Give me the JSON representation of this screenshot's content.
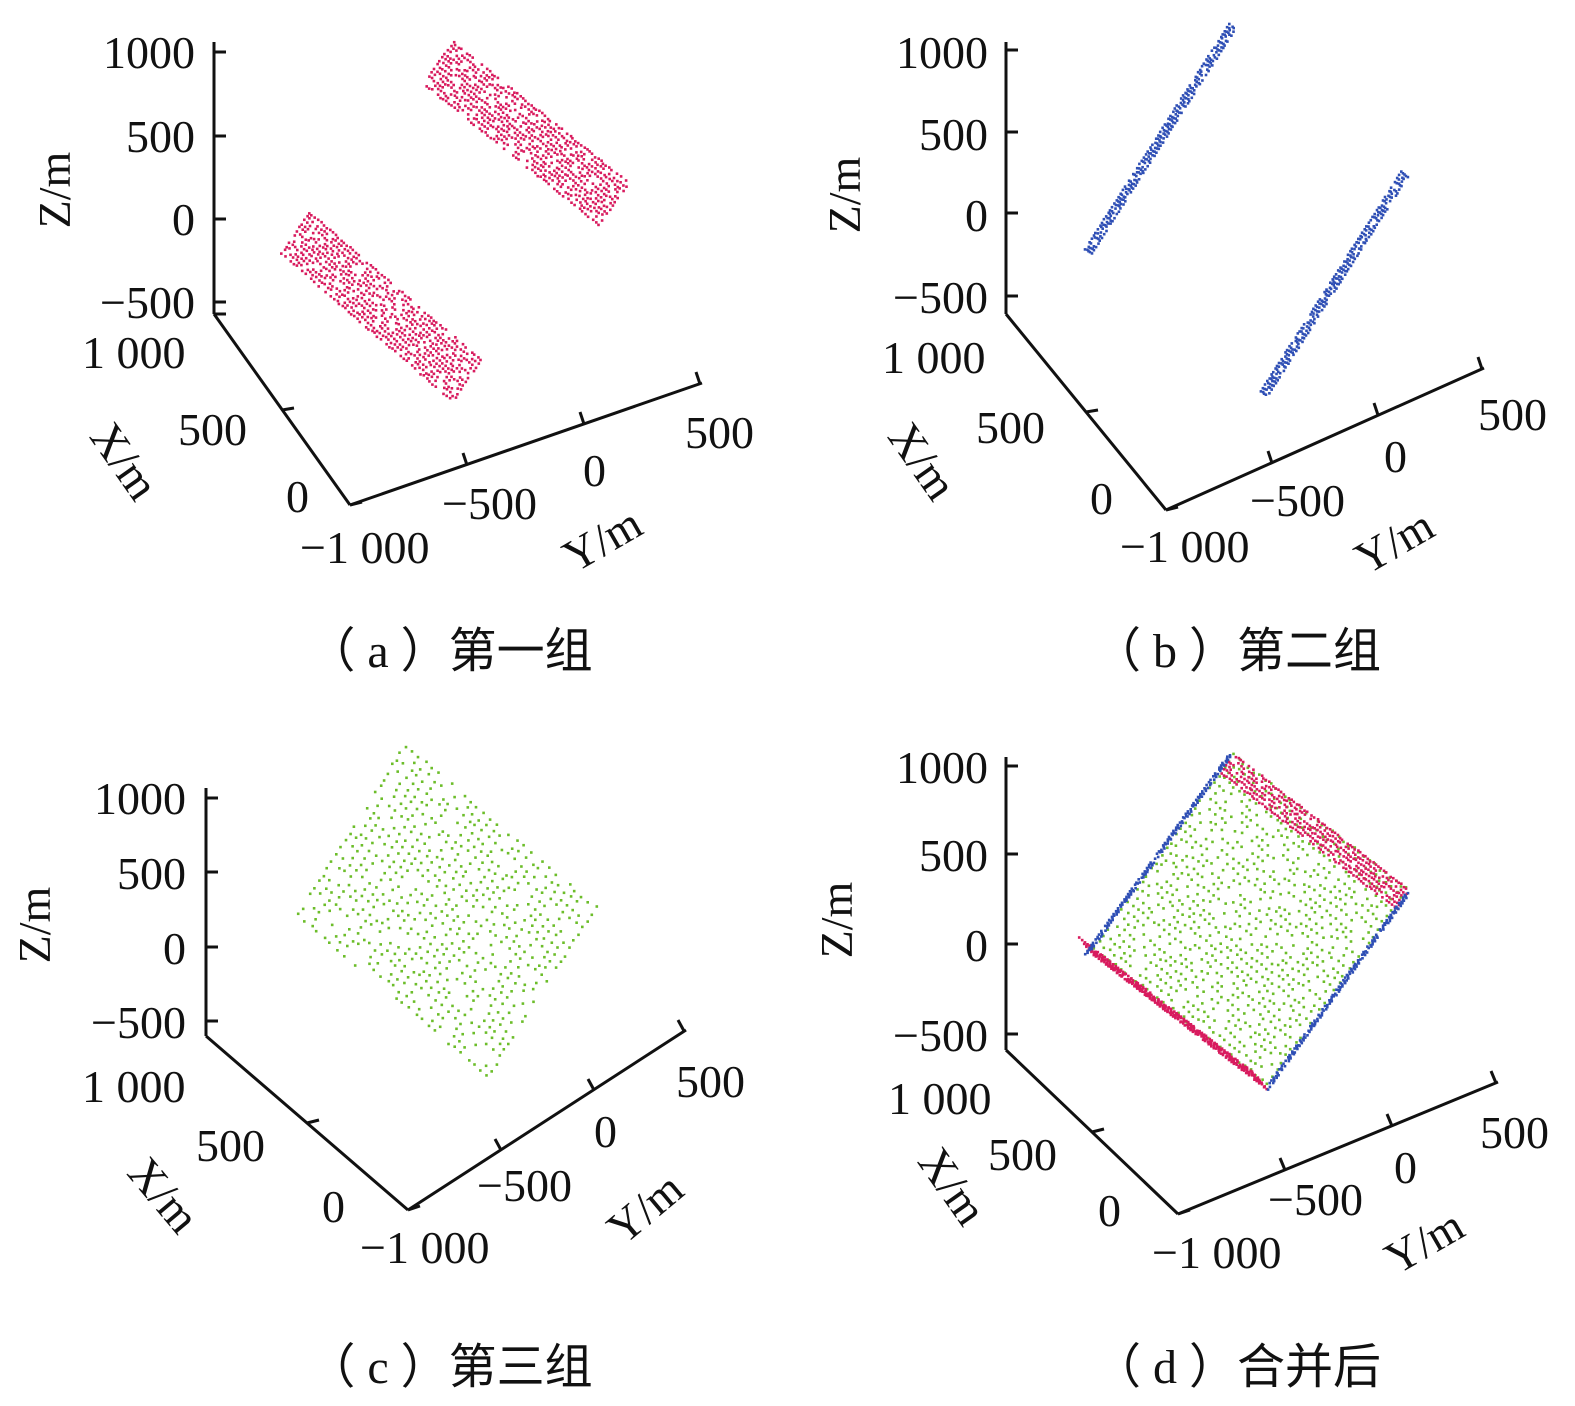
{
  "colors": {
    "axis": "#111111",
    "group1": "#d81b5e",
    "group2": "#2f4fb5",
    "group3": "#6cbd2a"
  },
  "chart_data": [
    {
      "type": "scatter",
      "title": "",
      "caption": "（ a ）第一组",
      "zlabel": "Z/m",
      "xlabel": "X/m",
      "ylabel": "Y/m",
      "z_ticks": [
        "1000",
        "500",
        "0",
        "−500"
      ],
      "x_ticks": [
        "1 000",
        "500",
        "0"
      ],
      "y_ticks": [
        "−1 000",
        "−500",
        "0",
        "500"
      ],
      "xlim": [
        0,
        1000
      ],
      "ylim": [
        -1000,
        500
      ],
      "zlim": [
        -500,
        1000
      ],
      "series": [
        {
          "color": "#d81b5e",
          "point_clouds": [
            "upper-slab",
            "lower-slab"
          ]
        }
      ]
    },
    {
      "type": "scatter",
      "title": "",
      "caption": "（ b ）第二组",
      "zlabel": "Z/m",
      "xlabel": "X/m",
      "ylabel": "Y/m",
      "z_ticks": [
        "1000",
        "500",
        "0",
        "−500"
      ],
      "x_ticks": [
        "1 000",
        "500",
        "0"
      ],
      "y_ticks": [
        "−1 000",
        "−500",
        "0",
        "500"
      ],
      "xlim": [
        0,
        1000
      ],
      "ylim": [
        -1000,
        500
      ],
      "zlim": [
        -500,
        1000
      ],
      "series": [
        {
          "color": "#2f4fb5",
          "point_clouds": [
            "left-plane",
            "right-plane"
          ]
        }
      ]
    },
    {
      "type": "scatter",
      "title": "",
      "caption": "（ c ）第三组",
      "zlabel": "Z/m",
      "xlabel": "X/m",
      "ylabel": "Y/m",
      "z_ticks": [
        "1000",
        "500",
        "0",
        "−500"
      ],
      "x_ticks": [
        "1 000",
        "500",
        "0"
      ],
      "y_ticks": [
        "−1 000",
        "−500",
        "0",
        "500"
      ],
      "xlim": [
        0,
        1000
      ],
      "ylim": [
        -1000,
        500
      ],
      "zlim": [
        -500,
        1000
      ],
      "series": [
        {
          "color": "#6cbd2a",
          "point_clouds": [
            "diamond-face"
          ]
        }
      ]
    },
    {
      "type": "scatter",
      "title": "",
      "caption": "（ d ）合并后",
      "zlabel": "Z/m",
      "xlabel": "X/m",
      "ylabel": "Y/m",
      "z_ticks": [
        "1000",
        "500",
        "0",
        "−500"
      ],
      "x_ticks": [
        "1 000",
        "500",
        "0"
      ],
      "y_ticks": [
        "−1 000",
        "−500",
        "0",
        "500"
      ],
      "xlim": [
        0,
        1000
      ],
      "ylim": [
        -1000,
        500
      ],
      "zlim": [
        -500,
        1000
      ],
      "series": [
        {
          "color": "#6cbd2a",
          "point_clouds": [
            "combined-face"
          ]
        },
        {
          "color": "#d81b5e",
          "point_clouds": [
            "upper-edge",
            "lower-edge"
          ]
        },
        {
          "color": "#2f4fb5",
          "point_clouds": [
            "left-edge",
            "right-edge"
          ]
        }
      ]
    }
  ]
}
